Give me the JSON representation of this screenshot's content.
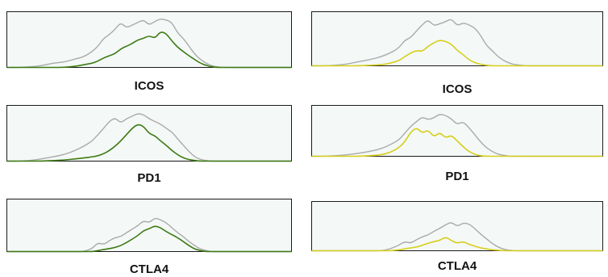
{
  "colors": {
    "control": "#aaaaaa",
    "left_sample": "#3d7a12",
    "right_sample": "#d6cf1a",
    "axis": "#1a1a1a",
    "background": "#f4f8f7"
  },
  "chart_data": [
    {
      "type": "line",
      "label": "ICOS",
      "x": [
        0,
        0.04,
        0.08,
        0.12,
        0.16,
        0.2,
        0.24,
        0.27,
        0.3,
        0.32,
        0.34,
        0.36,
        0.38,
        0.4,
        0.42,
        0.44,
        0.46,
        0.48,
        0.5,
        0.52,
        0.54,
        0.56,
        0.58,
        0.6,
        0.62,
        0.64,
        0.66,
        0.68,
        0.7,
        0.72,
        0.74,
        0.76,
        0.8,
        0.84,
        0.88,
        0.92,
        0.96,
        1.0
      ],
      "series": [
        {
          "color": "#aaaaaa",
          "values": [
            0,
            0,
            0.01,
            0.03,
            0.08,
            0.1,
            0.16,
            0.2,
            0.3,
            0.4,
            0.55,
            0.62,
            0.72,
            0.85,
            0.75,
            0.8,
            0.85,
            0.9,
            0.8,
            0.87,
            0.92,
            0.9,
            0.85,
            0.65,
            0.55,
            0.4,
            0.25,
            0.15,
            0.08,
            0.03,
            0.01,
            0,
            0,
            0,
            0,
            0,
            0,
            0
          ]
        },
        {
          "color": "#3d7a12",
          "values": [
            0,
            0,
            0,
            0,
            0,
            0,
            0.02,
            0.05,
            0.08,
            0.12,
            0.18,
            0.22,
            0.26,
            0.35,
            0.4,
            0.45,
            0.52,
            0.55,
            0.6,
            0.55,
            0.68,
            0.64,
            0.5,
            0.38,
            0.3,
            0.22,
            0.15,
            0.08,
            0.04,
            0.01,
            0,
            0,
            0,
            0,
            0,
            0,
            0,
            0
          ]
        }
      ]
    },
    {
      "type": "line",
      "label": "ICOS",
      "x": [
        0,
        0.04,
        0.08,
        0.12,
        0.16,
        0.2,
        0.24,
        0.27,
        0.3,
        0.32,
        0.34,
        0.36,
        0.38,
        0.4,
        0.42,
        0.44,
        0.46,
        0.48,
        0.5,
        0.52,
        0.54,
        0.56,
        0.58,
        0.6,
        0.62,
        0.64,
        0.66,
        0.68,
        0.7,
        0.72,
        0.74,
        0.76,
        0.8,
        0.84,
        0.88,
        0.92,
        0.96,
        1.0
      ],
      "series": [
        {
          "color": "#aaaaaa",
          "values": [
            0,
            0,
            0.01,
            0.03,
            0.08,
            0.12,
            0.18,
            0.25,
            0.35,
            0.5,
            0.55,
            0.68,
            0.8,
            0.9,
            0.78,
            0.82,
            0.86,
            0.92,
            0.78,
            0.84,
            0.8,
            0.74,
            0.6,
            0.4,
            0.3,
            0.18,
            0.1,
            0.05,
            0.02,
            0.01,
            0,
            0,
            0,
            0,
            0,
            0,
            0,
            0
          ]
        },
        {
          "color": "#d6cf1a",
          "values": [
            0,
            0,
            0,
            0,
            0,
            0.01,
            0.02,
            0.05,
            0.1,
            0.18,
            0.25,
            0.3,
            0.28,
            0.38,
            0.45,
            0.5,
            0.48,
            0.42,
            0.3,
            0.22,
            0.12,
            0.06,
            0.03,
            0.01,
            0,
            0,
            0,
            0,
            0,
            0,
            0,
            0,
            0,
            0,
            0,
            0,
            0,
            0
          ]
        }
      ]
    },
    {
      "type": "line",
      "label": "PD1",
      "x": [
        0,
        0.04,
        0.08,
        0.12,
        0.16,
        0.2,
        0.24,
        0.27,
        0.3,
        0.32,
        0.34,
        0.36,
        0.38,
        0.4,
        0.42,
        0.44,
        0.46,
        0.48,
        0.5,
        0.52,
        0.54,
        0.56,
        0.58,
        0.6,
        0.62,
        0.64,
        0.66,
        0.68,
        0.7,
        0.72,
        0.74,
        0.76,
        0.8,
        0.84,
        0.88,
        0.92,
        0.96,
        1.0
      ],
      "series": [
        {
          "color": "#aaaaaa",
          "values": [
            0,
            0,
            0.01,
            0.04,
            0.08,
            0.12,
            0.2,
            0.28,
            0.38,
            0.5,
            0.62,
            0.75,
            0.82,
            0.72,
            0.8,
            0.85,
            0.9,
            0.88,
            0.8,
            0.75,
            0.7,
            0.62,
            0.55,
            0.42,
            0.3,
            0.18,
            0.08,
            0.03,
            0.01,
            0,
            0,
            0,
            0,
            0,
            0,
            0,
            0,
            0
          ]
        },
        {
          "color": "#3d7a12",
          "values": [
            0,
            0,
            0,
            0,
            0.01,
            0.02,
            0.04,
            0.06,
            0.08,
            0.1,
            0.14,
            0.2,
            0.28,
            0.38,
            0.5,
            0.62,
            0.7,
            0.66,
            0.52,
            0.48,
            0.38,
            0.3,
            0.2,
            0.12,
            0.06,
            0.03,
            0.01,
            0,
            0,
            0,
            0,
            0,
            0,
            0,
            0,
            0,
            0,
            0
          ]
        }
      ]
    },
    {
      "type": "line",
      "label": "PD1",
      "x": [
        0,
        0.04,
        0.08,
        0.12,
        0.16,
        0.2,
        0.24,
        0.27,
        0.3,
        0.32,
        0.34,
        0.36,
        0.38,
        0.4,
        0.42,
        0.44,
        0.46,
        0.48,
        0.5,
        0.52,
        0.54,
        0.56,
        0.58,
        0.6,
        0.62,
        0.64,
        0.66,
        0.68,
        0.7,
        0.72,
        0.74,
        0.76,
        0.8,
        0.84,
        0.88,
        0.92,
        0.96,
        1.0
      ],
      "series": [
        {
          "color": "#aaaaaa",
          "values": [
            0,
            0,
            0.01,
            0.03,
            0.06,
            0.1,
            0.16,
            0.24,
            0.34,
            0.48,
            0.62,
            0.72,
            0.82,
            0.76,
            0.8,
            0.88,
            0.85,
            0.78,
            0.66,
            0.72,
            0.6,
            0.45,
            0.3,
            0.18,
            0.1,
            0.04,
            0.02,
            0,
            0,
            0,
            0,
            0,
            0,
            0,
            0,
            0,
            0,
            0
          ]
        },
        {
          "color": "#d6cf1a",
          "values": [
            0,
            0,
            0,
            0,
            0,
            0.01,
            0.03,
            0.08,
            0.18,
            0.3,
            0.5,
            0.6,
            0.48,
            0.55,
            0.4,
            0.5,
            0.38,
            0.44,
            0.32,
            0.2,
            0.1,
            0.04,
            0.01,
            0,
            0,
            0,
            0,
            0,
            0,
            0,
            0,
            0,
            0,
            0,
            0,
            0,
            0,
            0
          ]
        }
      ]
    },
    {
      "type": "line",
      "label": "CTLA4",
      "x": [
        0,
        0.04,
        0.08,
        0.12,
        0.16,
        0.2,
        0.24,
        0.27,
        0.3,
        0.32,
        0.34,
        0.36,
        0.38,
        0.4,
        0.42,
        0.44,
        0.46,
        0.48,
        0.5,
        0.52,
        0.54,
        0.56,
        0.58,
        0.6,
        0.62,
        0.64,
        0.66,
        0.68,
        0.7,
        0.72,
        0.74,
        0.76,
        0.8,
        0.84,
        0.88,
        0.92,
        0.96,
        1.0
      ],
      "series": [
        {
          "color": "#aaaaaa",
          "values": [
            0,
            0,
            0,
            0,
            0,
            0,
            0,
            0,
            0.06,
            0.18,
            0.14,
            0.22,
            0.28,
            0.3,
            0.38,
            0.45,
            0.52,
            0.62,
            0.58,
            0.68,
            0.64,
            0.58,
            0.48,
            0.38,
            0.3,
            0.2,
            0.12,
            0.05,
            0.02,
            0,
            0,
            0,
            0,
            0,
            0,
            0,
            0,
            0
          ]
        },
        {
          "color": "#3d7a12",
          "values": [
            0,
            0,
            0,
            0,
            0,
            0,
            0,
            0,
            0,
            0.02,
            0.04,
            0.06,
            0.08,
            0.12,
            0.18,
            0.25,
            0.32,
            0.42,
            0.46,
            0.52,
            0.48,
            0.4,
            0.34,
            0.28,
            0.2,
            0.12,
            0.05,
            0.02,
            0,
            0,
            0,
            0,
            0,
            0,
            0,
            0,
            0,
            0
          ]
        }
      ]
    },
    {
      "type": "line",
      "label": "CTLA4",
      "x": [
        0,
        0.04,
        0.08,
        0.12,
        0.16,
        0.2,
        0.24,
        0.27,
        0.3,
        0.32,
        0.34,
        0.36,
        0.38,
        0.4,
        0.42,
        0.44,
        0.46,
        0.48,
        0.5,
        0.52,
        0.54,
        0.56,
        0.58,
        0.6,
        0.62,
        0.64,
        0.66,
        0.68,
        0.7,
        0.72,
        0.74,
        0.76,
        0.8,
        0.84,
        0.88,
        0.92,
        0.96,
        1.0
      ],
      "series": [
        {
          "color": "#aaaaaa",
          "values": [
            0,
            0,
            0,
            0,
            0,
            0,
            0,
            0.04,
            0.12,
            0.2,
            0.16,
            0.24,
            0.3,
            0.34,
            0.42,
            0.48,
            0.56,
            0.62,
            0.52,
            0.6,
            0.58,
            0.48,
            0.36,
            0.26,
            0.16,
            0.08,
            0.03,
            0.01,
            0,
            0,
            0,
            0,
            0,
            0,
            0,
            0,
            0,
            0
          ]
        },
        {
          "color": "#d6cf1a",
          "values": [
            0,
            0,
            0,
            0,
            0,
            0,
            0,
            0,
            0.02,
            0.04,
            0.06,
            0.08,
            0.12,
            0.16,
            0.2,
            0.22,
            0.3,
            0.22,
            0.16,
            0.2,
            0.14,
            0.1,
            0.06,
            0.04,
            0.02,
            0.01,
            0,
            0,
            0,
            0,
            0,
            0,
            0,
            0,
            0,
            0,
            0,
            0
          ]
        }
      ]
    }
  ]
}
